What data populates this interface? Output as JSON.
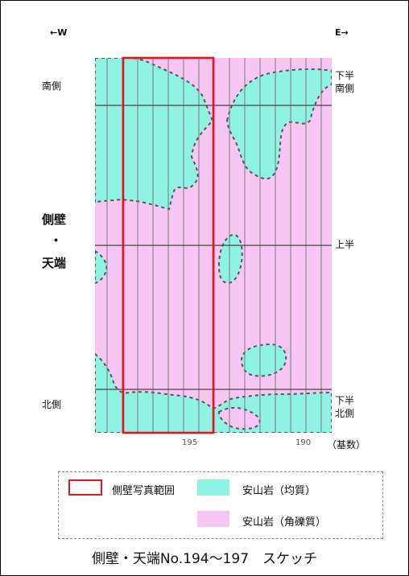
{
  "directions": {
    "west": "←W",
    "east": "E→"
  },
  "left_labels": {
    "south": "南側",
    "north": "北側",
    "center_top": "側壁",
    "center_dot": "・",
    "center_bottom": "天端"
  },
  "right_labels": {
    "lower_south": [
      "下半",
      "南側"
    ],
    "upper": "上半",
    "lower_north": [
      "下半",
      "北側"
    ]
  },
  "ticks": {
    "t195": "195",
    "t190": "190",
    "unit": "（基数）"
  },
  "legend": {
    "range_label": "側壁写真範囲",
    "homogeneous_label": "安山岩（均質）",
    "breccia_label": "安山岩（角礫質）"
  },
  "caption": "側壁・天端No.194～197　スケッチ",
  "colors": {
    "cyan": "#8ff3e4",
    "pink": "#f8c6f4",
    "range_box": "#e8161b",
    "grid": "#7a7a7a"
  }
}
